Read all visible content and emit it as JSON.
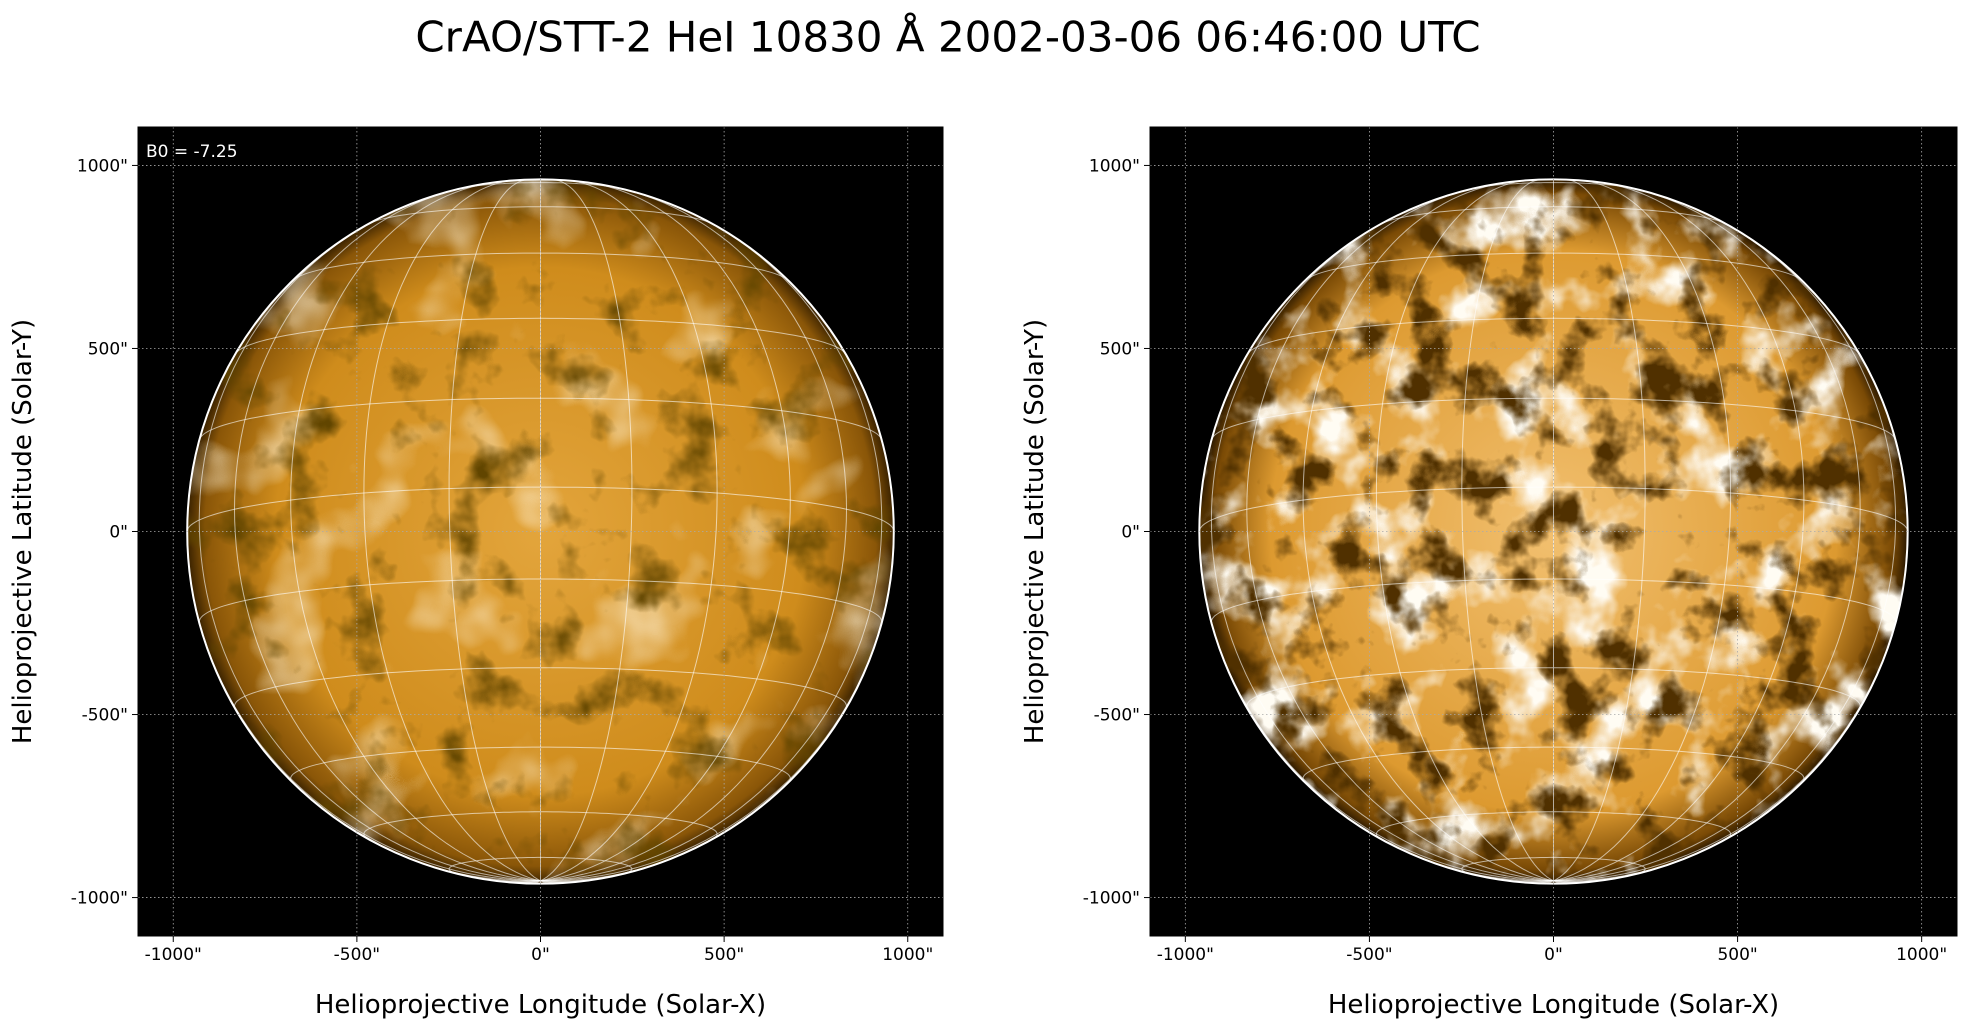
{
  "title": "CrAO/STT-2 HeI 10830 Å 2002-03-06 06:46:00 UTC",
  "chart_data": [
    {
      "type": "image",
      "annotation": "B0 = -7.25",
      "xlabel": "Helioprojective Longitude (Solar-X)",
      "ylabel": "Helioprojective Latitude (Solar-Y)",
      "xlim": [
        -1096,
        1096
      ],
      "ylim": [
        -1105,
        1105
      ],
      "xticks": [
        {
          "value": -1000,
          "label": "-1000\""
        },
        {
          "value": -500,
          "label": "-500\""
        },
        {
          "value": 0,
          "label": "0\""
        },
        {
          "value": 500,
          "label": "500\""
        },
        {
          "value": 1000,
          "label": "1000\""
        }
      ],
      "yticks": [
        {
          "value": -1000,
          "label": "-1000\""
        },
        {
          "value": -500,
          "label": "-500\""
        },
        {
          "value": 0,
          "label": "0\""
        },
        {
          "value": 500,
          "label": "500\""
        },
        {
          "value": 1000,
          "label": "1000\""
        }
      ],
      "grid": true
    },
    {
      "type": "image",
      "xlabel": "Helioprojective Longitude (Solar-X)",
      "ylabel": "Helioprojective Latitude (Solar-Y)",
      "xlim": [
        -1096,
        1096
      ],
      "ylim": [
        -1105,
        1105
      ],
      "xticks": [
        {
          "value": -1000,
          "label": "-1000\""
        },
        {
          "value": -500,
          "label": "-500\""
        },
        {
          "value": 0,
          "label": "0\""
        },
        {
          "value": 500,
          "label": "500\""
        },
        {
          "value": 1000,
          "label": "1000\""
        }
      ],
      "yticks": [
        {
          "value": -1000,
          "label": "-1000\""
        },
        {
          "value": -500,
          "label": "-500\""
        },
        {
          "value": 0,
          "label": "0\""
        },
        {
          "value": 500,
          "label": "500\""
        },
        {
          "value": 1000,
          "label": "1000\""
        }
      ],
      "grid": true
    }
  ]
}
